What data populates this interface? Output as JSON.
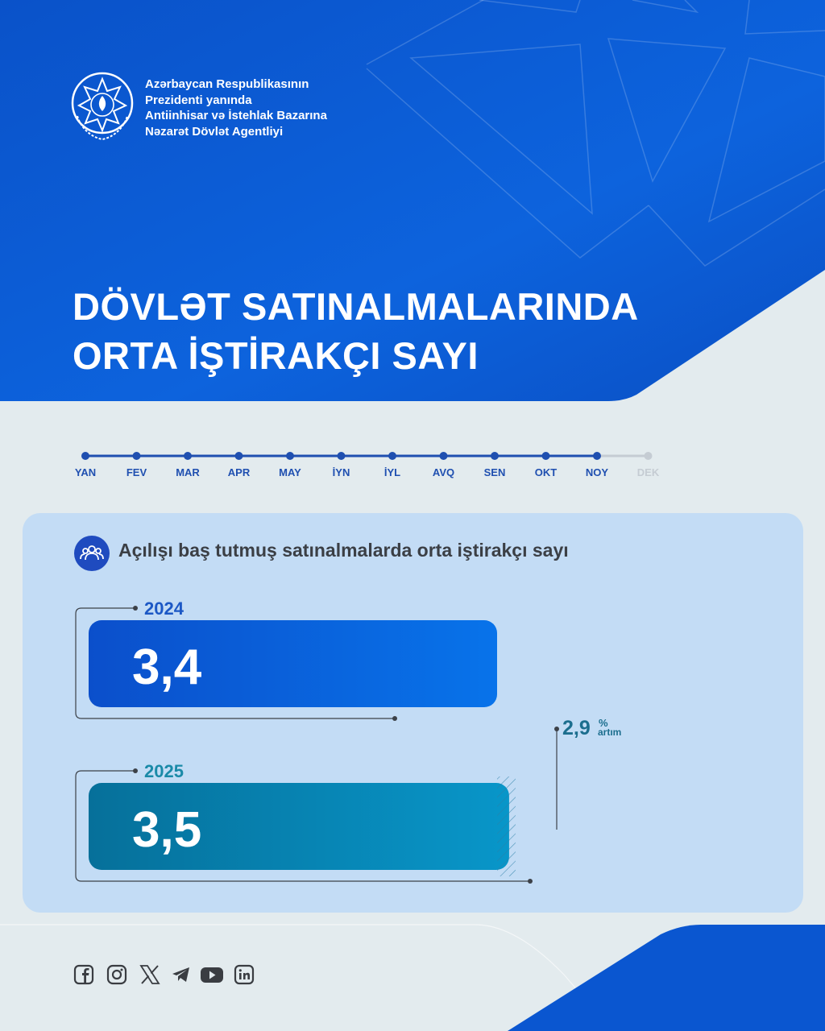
{
  "header": {
    "org_lines": [
      "Azərbaycan Respublikasının",
      "Prezidenti yanında",
      "Antiinhisar və İstehlak Bazarına",
      "Nəzarət Dövlət Agentliyi"
    ],
    "emblem_icon": "azerbaijan-emblem-icon",
    "title_lines": [
      "DÖVLƏT SATINALMALARINDA",
      "ORTA İŞTİRAKÇI SAYI"
    ]
  },
  "timeline": {
    "months": [
      "YAN",
      "FEV",
      "MAR",
      "APR",
      "MAY",
      "İYN",
      "İYL",
      "AVQ",
      "SEN",
      "OKT",
      "NOY",
      "DEK"
    ],
    "active_through": "NOY",
    "active_color": "#1f4fb0",
    "inactive_color": "#c5ccd3"
  },
  "card": {
    "title": "Açılışı baş tutmuş satınalmalarda orta iştirakçı sayı",
    "icon": "people-group-icon"
  },
  "chart_data": {
    "type": "bar",
    "orientation": "horizontal",
    "categories": [
      "2024",
      "2025"
    ],
    "values": [
      3.4,
      3.5
    ],
    "value_labels": [
      "3,4",
      "3,5"
    ],
    "increase_label": "2,9",
    "increase_unit": "%",
    "increase_word": "artım",
    "colors": [
      "#1d5fd8",
      "#0a7fae"
    ],
    "label_colors": [
      "#1c58c5",
      "#1a8aa8"
    ]
  },
  "footer": {
    "social_icons": [
      "facebook-icon",
      "instagram-icon",
      "x-icon",
      "telegram-icon",
      "youtube-icon",
      "linkedin-icon"
    ]
  },
  "colors": {
    "brand_blue": "#0a56d0",
    "background": "#e3ebee",
    "card_bg": "#c3dcf5"
  }
}
